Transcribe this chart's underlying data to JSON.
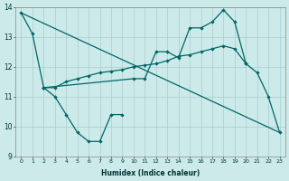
{
  "xlabel": "Humidex (Indice chaleur)",
  "bg_color": "#cceaea",
  "grid_color": "#aacccc",
  "line_color": "#006666",
  "ylim": [
    9,
    14
  ],
  "xlim": [
    -0.5,
    23.5
  ],
  "yticks": [
    9,
    10,
    11,
    12,
    13,
    14
  ],
  "xticks": [
    0,
    1,
    2,
    3,
    4,
    5,
    6,
    7,
    8,
    9,
    10,
    11,
    12,
    13,
    14,
    15,
    16,
    17,
    18,
    19,
    20,
    21,
    22,
    23
  ],
  "line1_x": [
    0,
    1,
    2,
    10,
    11,
    12,
    13,
    14,
    15,
    16,
    17,
    18,
    19,
    20,
    21,
    22,
    23
  ],
  "line1_y": [
    13.8,
    13.1,
    11.3,
    11.6,
    11.6,
    12.5,
    12.5,
    12.3,
    13.3,
    13.3,
    13.5,
    13.9,
    13.5,
    12.1,
    11.8,
    11.0,
    9.8
  ],
  "line2_x": [
    2,
    3,
    4,
    5,
    6,
    7,
    8,
    9,
    10,
    11,
    12,
    13,
    14,
    15,
    16,
    17,
    18,
    19,
    20
  ],
  "line2_y": [
    11.3,
    11.3,
    11.5,
    11.6,
    11.7,
    11.8,
    11.85,
    11.9,
    12.0,
    12.05,
    12.1,
    12.2,
    12.35,
    12.4,
    12.5,
    12.6,
    12.7,
    12.6,
    12.1
  ],
  "line3_x": [
    0,
    23
  ],
  "line3_y": [
    13.8,
    9.8
  ],
  "line4_x": [
    2,
    3,
    4,
    5,
    6,
    7,
    8,
    9
  ],
  "line4_y": [
    11.3,
    11.0,
    10.4,
    9.8,
    9.5,
    9.5,
    10.4,
    10.4
  ]
}
